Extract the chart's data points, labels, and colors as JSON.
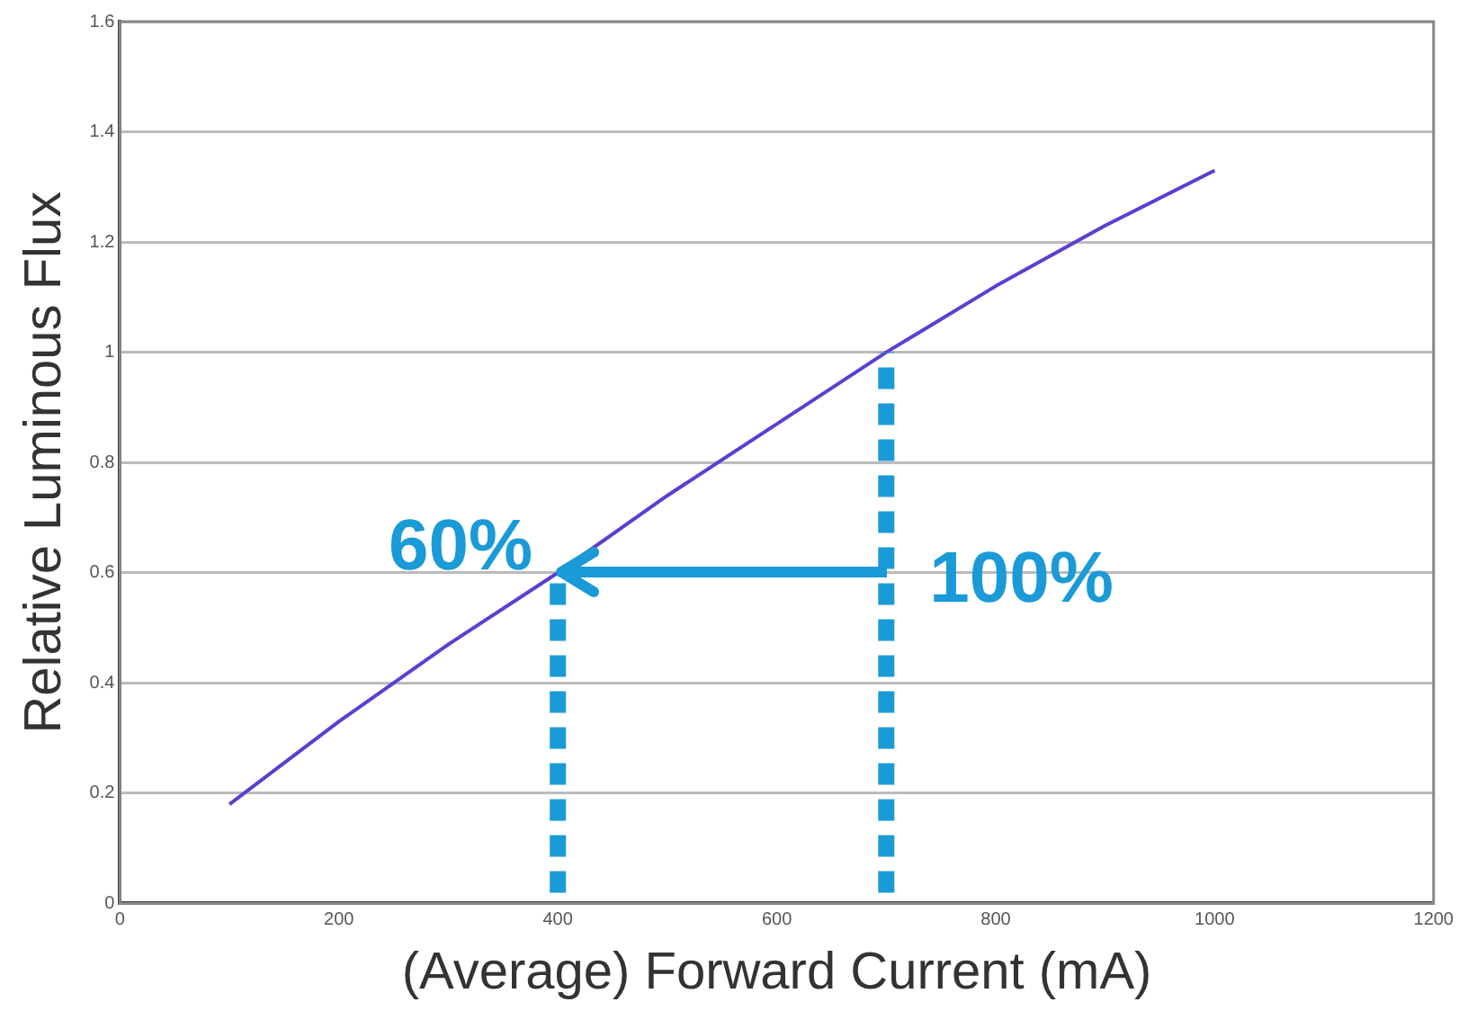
{
  "chart_data": {
    "type": "line",
    "xlabel": "(Average) Forward Current (mA)",
    "ylabel": "Relative Luminous Flux",
    "series": [
      {
        "color": "#5b3fd1",
        "x": [
          100,
          200,
          300,
          400,
          500,
          600,
          700,
          800,
          900,
          1000
        ],
        "values": [
          0.18,
          0.33,
          0.47,
          0.6,
          0.74,
          0.87,
          1.0,
          1.12,
          1.23,
          1.33
        ]
      }
    ],
    "xlim": [
      0,
      1200
    ],
    "xticks": [
      0,
      200,
      400,
      600,
      800,
      1000,
      1200
    ],
    "ylim": [
      0,
      1.6
    ],
    "yticks": [
      0,
      0.2,
      0.4,
      0.6,
      0.8,
      1,
      1.2,
      1.4,
      1.6
    ],
    "ref_lines": [
      {
        "axis": "x",
        "value": 400,
        "color": "#1a9ad6",
        "line_style": "dotted"
      },
      {
        "axis": "x",
        "value": 700,
        "color": "#1a9ad6",
        "line_style": "dotted"
      }
    ],
    "annotations": [
      {
        "text": "60%",
        "x": 400,
        "y": 0.6
      },
      {
        "text": "100%",
        "x": 700,
        "y": 0.6
      }
    ],
    "grid": "y",
    "legend": false,
    "marker": "none",
    "line_style": "solid"
  }
}
